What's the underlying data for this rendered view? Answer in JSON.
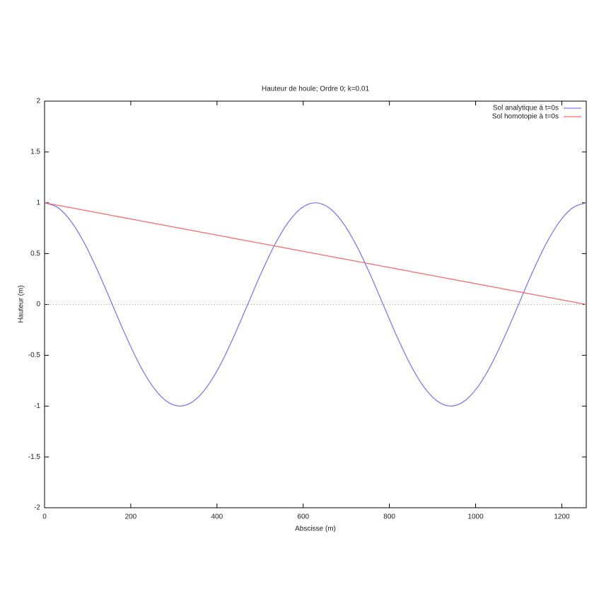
{
  "chart_data": {
    "type": "line",
    "title": "Hauteur de houle; Ordre 0; k=0.01",
    "xlabel": "Abscisse (m)",
    "ylabel": "Hauteur (m)",
    "x": [
      0,
      31.42,
      62.83,
      94.25,
      125.66,
      157.08,
      188.5,
      219.91,
      251.33,
      282.74,
      314.16,
      345.58,
      376.99,
      408.41,
      439.82,
      471.24,
      502.65,
      534.07,
      565.49,
      596.9,
      628.32,
      659.73,
      691.15,
      722.57,
      753.98,
      785.4,
      816.81,
      848.23,
      879.65,
      911.06,
      942.48,
      973.89,
      1005.31,
      1036.73,
      1068.14,
      1099.56,
      1130.97,
      1162.39,
      1193.81,
      1225.22,
      1256.64
    ],
    "series": [
      {
        "name": "Sol analytique à t=0s",
        "color": "#7b7bff",
        "values": [
          1,
          0.951,
          0.809,
          0.588,
          0.309,
          0,
          -0.309,
          -0.588,
          -0.809,
          -0.951,
          -1,
          -0.951,
          -0.809,
          -0.588,
          -0.309,
          0,
          0.309,
          0.588,
          0.809,
          0.951,
          1,
          0.951,
          0.809,
          0.588,
          0.309,
          0,
          -0.309,
          -0.588,
          -0.809,
          -0.951,
          -1,
          -0.951,
          -0.809,
          -0.588,
          -0.309,
          0,
          0.309,
          0.588,
          0.809,
          0.951,
          1
        ]
      },
      {
        "name": "Sol homotopie à t=0s",
        "color": "#ff6b6b",
        "values": [
          1,
          0.975,
          0.95,
          0.925,
          0.9,
          0.875,
          0.85,
          0.825,
          0.8,
          0.775,
          0.75,
          0.725,
          0.7,
          0.675,
          0.65,
          0.625,
          0.6,
          0.575,
          0.55,
          0.525,
          0.5,
          0.475,
          0.45,
          0.425,
          0.4,
          0.375,
          0.35,
          0.325,
          0.3,
          0.275,
          0.25,
          0.225,
          0.2,
          0.175,
          0.15,
          0.125,
          0.1,
          0.075,
          0.05,
          0.025,
          0
        ]
      }
    ],
    "xlim": [
      0,
      1256.64
    ],
    "xticks": [
      0,
      200,
      400,
      600,
      800,
      1000,
      1200
    ],
    "ylim": [
      -2,
      2
    ],
    "yticks": [
      -2,
      -1.5,
      -1,
      -0.5,
      0,
      0.5,
      1,
      1.5,
      2
    ],
    "zeroaxis": true,
    "legend": "top-right"
  }
}
